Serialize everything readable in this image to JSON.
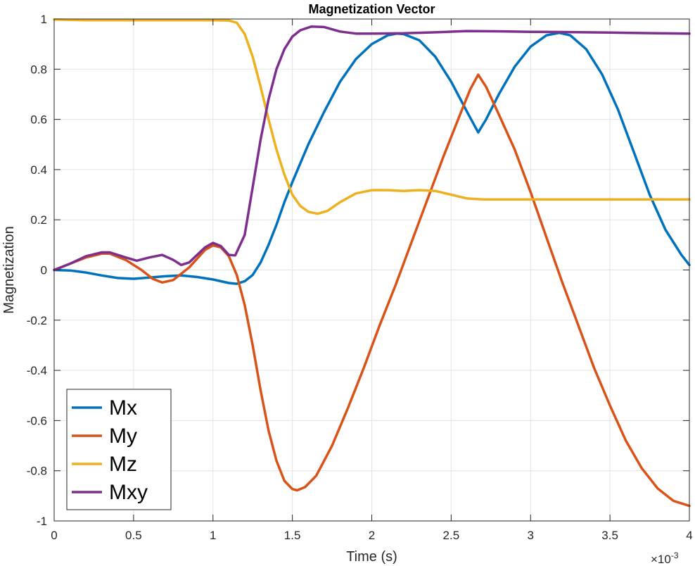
{
  "chart_data": {
    "type": "line",
    "title": "Magnetization Vector",
    "xlabel": "Time (s)",
    "ylabel": "Magnetization",
    "x_exponent_label": "×10",
    "x_exponent_power": "-3",
    "xlim": [
      0,
      4
    ],
    "ylim": [
      -1,
      1
    ],
    "x_ticks": [
      0,
      0.5,
      1,
      1.5,
      2,
      2.5,
      3,
      3.5,
      4
    ],
    "x_tick_labels": [
      "0",
      "0.5",
      "1",
      "1.5",
      "2",
      "2.5",
      "3",
      "3.5",
      "4"
    ],
    "y_ticks": [
      -1,
      -0.8,
      -0.6,
      -0.4,
      -0.2,
      0,
      0.2,
      0.4,
      0.6,
      0.8,
      1
    ],
    "y_tick_labels": [
      "-1",
      "-0.8",
      "-0.6",
      "-0.4",
      "-0.2",
      "0",
      "0.2",
      "0.4",
      "0.6",
      "0.8",
      "1"
    ],
    "grid": true,
    "legend_position": "bottom-left",
    "series": [
      {
        "name": "Mx",
        "color": "#0072BD",
        "points": [
          [
            0,
            0
          ],
          [
            0.1,
            -0.002
          ],
          [
            0.2,
            -0.01
          ],
          [
            0.3,
            -0.022
          ],
          [
            0.4,
            -0.032
          ],
          [
            0.5,
            -0.035
          ],
          [
            0.6,
            -0.03
          ],
          [
            0.7,
            -0.025
          ],
          [
            0.8,
            -0.022
          ],
          [
            0.9,
            -0.028
          ],
          [
            1.0,
            -0.038
          ],
          [
            1.1,
            -0.052
          ],
          [
            1.15,
            -0.055
          ],
          [
            1.2,
            -0.045
          ],
          [
            1.25,
            -0.02
          ],
          [
            1.3,
            0.03
          ],
          [
            1.35,
            0.1
          ],
          [
            1.4,
            0.18
          ],
          [
            1.45,
            0.27
          ],
          [
            1.5,
            0.35
          ],
          [
            1.6,
            0.5
          ],
          [
            1.7,
            0.63
          ],
          [
            1.8,
            0.75
          ],
          [
            1.9,
            0.84
          ],
          [
            2.0,
            0.9
          ],
          [
            2.1,
            0.935
          ],
          [
            2.16,
            0.942
          ],
          [
            2.2,
            0.94
          ],
          [
            2.3,
            0.915
          ],
          [
            2.4,
            0.85
          ],
          [
            2.5,
            0.75
          ],
          [
            2.6,
            0.63
          ],
          [
            2.67,
            0.548
          ],
          [
            2.72,
            0.6
          ],
          [
            2.8,
            0.7
          ],
          [
            2.9,
            0.81
          ],
          [
            3.0,
            0.89
          ],
          [
            3.1,
            0.935
          ],
          [
            3.18,
            0.945
          ],
          [
            3.25,
            0.935
          ],
          [
            3.35,
            0.88
          ],
          [
            3.45,
            0.78
          ],
          [
            3.55,
            0.64
          ],
          [
            3.65,
            0.47
          ],
          [
            3.75,
            0.3
          ],
          [
            3.85,
            0.16
          ],
          [
            3.95,
            0.06
          ],
          [
            4.0,
            0.02
          ]
        ]
      },
      {
        "name": "My",
        "color": "#D95319",
        "points": [
          [
            0,
            0
          ],
          [
            0.1,
            0.025
          ],
          [
            0.2,
            0.05
          ],
          [
            0.3,
            0.065
          ],
          [
            0.35,
            0.065
          ],
          [
            0.45,
            0.04
          ],
          [
            0.55,
            0.0
          ],
          [
            0.62,
            -0.035
          ],
          [
            0.68,
            -0.05
          ],
          [
            0.75,
            -0.04
          ],
          [
            0.85,
            0.01
          ],
          [
            0.95,
            0.08
          ],
          [
            1.0,
            0.098
          ],
          [
            1.05,
            0.09
          ],
          [
            1.1,
            0.055
          ],
          [
            1.15,
            -0.02
          ],
          [
            1.2,
            -0.14
          ],
          [
            1.25,
            -0.3
          ],
          [
            1.3,
            -0.48
          ],
          [
            1.35,
            -0.64
          ],
          [
            1.4,
            -0.76
          ],
          [
            1.45,
            -0.84
          ],
          [
            1.5,
            -0.873
          ],
          [
            1.53,
            -0.878
          ],
          [
            1.58,
            -0.865
          ],
          [
            1.65,
            -0.82
          ],
          [
            1.75,
            -0.7
          ],
          [
            1.85,
            -0.55
          ],
          [
            1.95,
            -0.39
          ],
          [
            2.05,
            -0.22
          ],
          [
            2.15,
            -0.06
          ],
          [
            2.25,
            0.11
          ],
          [
            2.35,
            0.28
          ],
          [
            2.45,
            0.45
          ],
          [
            2.55,
            0.61
          ],
          [
            2.62,
            0.72
          ],
          [
            2.67,
            0.778
          ],
          [
            2.72,
            0.73
          ],
          [
            2.8,
            0.62
          ],
          [
            2.9,
            0.48
          ],
          [
            3.0,
            0.31
          ],
          [
            3.1,
            0.13
          ],
          [
            3.2,
            -0.05
          ],
          [
            3.3,
            -0.22
          ],
          [
            3.4,
            -0.39
          ],
          [
            3.5,
            -0.54
          ],
          [
            3.6,
            -0.68
          ],
          [
            3.7,
            -0.79
          ],
          [
            3.8,
            -0.87
          ],
          [
            3.9,
            -0.92
          ],
          [
            4.0,
            -0.94
          ]
        ]
      },
      {
        "name": "Mz",
        "color": "#EDB120",
        "points": [
          [
            0,
            0.998
          ],
          [
            0.2,
            0.995
          ],
          [
            0.4,
            0.995
          ],
          [
            0.6,
            0.995
          ],
          [
            0.8,
            0.995
          ],
          [
            1.0,
            0.995
          ],
          [
            1.1,
            0.994
          ],
          [
            1.15,
            0.985
          ],
          [
            1.2,
            0.94
          ],
          [
            1.25,
            0.85
          ],
          [
            1.3,
            0.73
          ],
          [
            1.35,
            0.6
          ],
          [
            1.4,
            0.48
          ],
          [
            1.45,
            0.38
          ],
          [
            1.5,
            0.3
          ],
          [
            1.55,
            0.255
          ],
          [
            1.6,
            0.232
          ],
          [
            1.66,
            0.224
          ],
          [
            1.72,
            0.235
          ],
          [
            1.8,
            0.27
          ],
          [
            1.9,
            0.305
          ],
          [
            2.0,
            0.318
          ],
          [
            2.1,
            0.318
          ],
          [
            2.2,
            0.315
          ],
          [
            2.3,
            0.318
          ],
          [
            2.4,
            0.315
          ],
          [
            2.5,
            0.3
          ],
          [
            2.6,
            0.285
          ],
          [
            2.7,
            0.281
          ],
          [
            3.0,
            0.281
          ],
          [
            3.5,
            0.281
          ],
          [
            4.0,
            0.281
          ]
        ]
      },
      {
        "name": "Mxy",
        "color": "#7E2F8E",
        "points": [
          [
            0,
            0
          ],
          [
            0.1,
            0.025
          ],
          [
            0.2,
            0.055
          ],
          [
            0.3,
            0.07
          ],
          [
            0.35,
            0.07
          ],
          [
            0.45,
            0.05
          ],
          [
            0.52,
            0.037
          ],
          [
            0.6,
            0.05
          ],
          [
            0.68,
            0.06
          ],
          [
            0.75,
            0.04
          ],
          [
            0.8,
            0.02
          ],
          [
            0.85,
            0.03
          ],
          [
            0.95,
            0.09
          ],
          [
            1.0,
            0.108
          ],
          [
            1.05,
            0.095
          ],
          [
            1.1,
            0.06
          ],
          [
            1.14,
            0.058
          ],
          [
            1.2,
            0.14
          ],
          [
            1.25,
            0.33
          ],
          [
            1.3,
            0.52
          ],
          [
            1.35,
            0.68
          ],
          [
            1.4,
            0.8
          ],
          [
            1.45,
            0.88
          ],
          [
            1.5,
            0.93
          ],
          [
            1.55,
            0.955
          ],
          [
            1.62,
            0.97
          ],
          [
            1.7,
            0.968
          ],
          [
            1.8,
            0.95
          ],
          [
            1.9,
            0.942
          ],
          [
            2.0,
            0.942
          ],
          [
            2.2,
            0.943
          ],
          [
            2.4,
            0.947
          ],
          [
            2.6,
            0.952
          ],
          [
            2.8,
            0.951
          ],
          [
            3.0,
            0.949
          ],
          [
            3.2,
            0.948
          ],
          [
            3.5,
            0.946
          ],
          [
            3.8,
            0.943
          ],
          [
            4.0,
            0.942
          ]
        ]
      }
    ]
  }
}
